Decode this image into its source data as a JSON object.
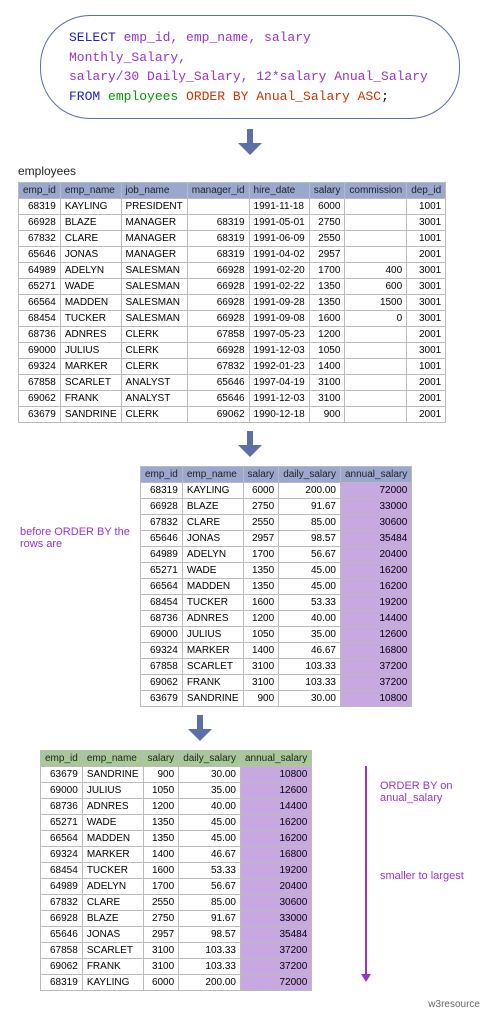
{
  "sql": {
    "line1_select": "SELECT ",
    "line1_cols": "emp_id, emp_name, salary Monthly_Salary,",
    "line2_cols": "salary/30 Daily_Salary, 12*salary Anual_Salary",
    "line3_from": "FROM ",
    "line3_tbl": "employees ",
    "line3_order": "ORDER BY Anual_Salary ASC",
    "line3_end": ";"
  },
  "captions": {
    "employees": "employees",
    "before": "before ORDER BY the rows are",
    "orderby": "ORDER BY on anual_salary",
    "direction": "smaller to largest",
    "footer": "w3resource"
  },
  "styling": {
    "header_bg": "#9aa8d0",
    "highlight_bg": "#c8a8e0",
    "header_hl_bg": "#a8c89a",
    "border_color": "#bbbbbb",
    "sql_border": "#5b6fa8",
    "arrow_fg": "#5b6fa8",
    "font_size_table": 10,
    "font_size_sql": 13
  },
  "table1": {
    "headers": [
      "emp_id",
      "emp_name",
      "job_name",
      "manager_id",
      "hire_date",
      "salary",
      "commission",
      "dep_id"
    ],
    "rows": [
      [
        "68319",
        "KAYLING",
        "PRESIDENT",
        "",
        "1991-11-18",
        "6000",
        "",
        "1001"
      ],
      [
        "66928",
        "BLAZE",
        "MANAGER",
        "68319",
        "1991-05-01",
        "2750",
        "",
        "3001"
      ],
      [
        "67832",
        "CLARE",
        "MANAGER",
        "68319",
        "1991-06-09",
        "2550",
        "",
        "1001"
      ],
      [
        "65646",
        "JONAS",
        "MANAGER",
        "68319",
        "1991-04-02",
        "2957",
        "",
        "2001"
      ],
      [
        "64989",
        "ADELYN",
        "SALESMAN",
        "66928",
        "1991-02-20",
        "1700",
        "400",
        "3001"
      ],
      [
        "65271",
        "WADE",
        "SALESMAN",
        "66928",
        "1991-02-22",
        "1350",
        "600",
        "3001"
      ],
      [
        "66564",
        "MADDEN",
        "SALESMAN",
        "66928",
        "1991-09-28",
        "1350",
        "1500",
        "3001"
      ],
      [
        "68454",
        "TUCKER",
        "SALESMAN",
        "66928",
        "1991-09-08",
        "1600",
        "0",
        "3001"
      ],
      [
        "68736",
        "ADNRES",
        "CLERK",
        "67858",
        "1997-05-23",
        "1200",
        "",
        "2001"
      ],
      [
        "69000",
        "JULIUS",
        "CLERK",
        "66928",
        "1991-12-03",
        "1050",
        "",
        "3001"
      ],
      [
        "69324",
        "MARKER",
        "CLERK",
        "67832",
        "1992-01-23",
        "1400",
        "",
        "1001"
      ],
      [
        "67858",
        "SCARLET",
        "ANALYST",
        "65646",
        "1997-04-19",
        "3100",
        "",
        "2001"
      ],
      [
        "69062",
        "FRANK",
        "ANALYST",
        "65646",
        "1991-12-03",
        "3100",
        "",
        "2001"
      ],
      [
        "63679",
        "SANDRINE",
        "CLERK",
        "69062",
        "1990-12-18",
        "900",
        "",
        "2001"
      ]
    ]
  },
  "table2": {
    "headers": [
      "emp_id",
      "emp_name",
      "salary",
      "daily_salary",
      "annual_salary"
    ],
    "rows": [
      [
        "68319",
        "KAYLING",
        "6000",
        "200.00",
        "72000"
      ],
      [
        "66928",
        "BLAZE",
        "2750",
        "91.67",
        "33000"
      ],
      [
        "67832",
        "CLARE",
        "2550",
        "85.00",
        "30600"
      ],
      [
        "65646",
        "JONAS",
        "2957",
        "98.57",
        "35484"
      ],
      [
        "64989",
        "ADELYN",
        "1700",
        "56.67",
        "20400"
      ],
      [
        "65271",
        "WADE",
        "1350",
        "45.00",
        "16200"
      ],
      [
        "66564",
        "MADDEN",
        "1350",
        "45.00",
        "16200"
      ],
      [
        "68454",
        "TUCKER",
        "1600",
        "53.33",
        "19200"
      ],
      [
        "68736",
        "ADNRES",
        "1200",
        "40.00",
        "14400"
      ],
      [
        "69000",
        "JULIUS",
        "1050",
        "35.00",
        "12600"
      ],
      [
        "69324",
        "MARKER",
        "1400",
        "46.67",
        "16800"
      ],
      [
        "67858",
        "SCARLET",
        "3100",
        "103.33",
        "37200"
      ],
      [
        "69062",
        "FRANK",
        "3100",
        "103.33",
        "37200"
      ],
      [
        "63679",
        "SANDRINE",
        "900",
        "30.00",
        "10800"
      ]
    ]
  },
  "table3": {
    "headers": [
      "emp_id",
      "emp_name",
      "salary",
      "daily_salary",
      "annual_salary"
    ],
    "rows": [
      [
        "63679",
        "SANDRINE",
        "900",
        "30.00",
        "10800"
      ],
      [
        "69000",
        "JULIUS",
        "1050",
        "35.00",
        "12600"
      ],
      [
        "68736",
        "ADNRES",
        "1200",
        "40.00",
        "14400"
      ],
      [
        "65271",
        "WADE",
        "1350",
        "45.00",
        "16200"
      ],
      [
        "66564",
        "MADDEN",
        "1350",
        "45.00",
        "16200"
      ],
      [
        "69324",
        "MARKER",
        "1400",
        "46.67",
        "16800"
      ],
      [
        "68454",
        "TUCKER",
        "1600",
        "53.33",
        "19200"
      ],
      [
        "64989",
        "ADELYN",
        "1700",
        "56.67",
        "20400"
      ],
      [
        "67832",
        "CLARE",
        "2550",
        "85.00",
        "30600"
      ],
      [
        "66928",
        "BLAZE",
        "2750",
        "91.67",
        "33000"
      ],
      [
        "65646",
        "JONAS",
        "2957",
        "98.57",
        "35484"
      ],
      [
        "67858",
        "SCARLET",
        "3100",
        "103.33",
        "37200"
      ],
      [
        "69062",
        "FRANK",
        "3100",
        "103.33",
        "37200"
      ],
      [
        "68319",
        "KAYLING",
        "6000",
        "200.00",
        "72000"
      ]
    ]
  }
}
